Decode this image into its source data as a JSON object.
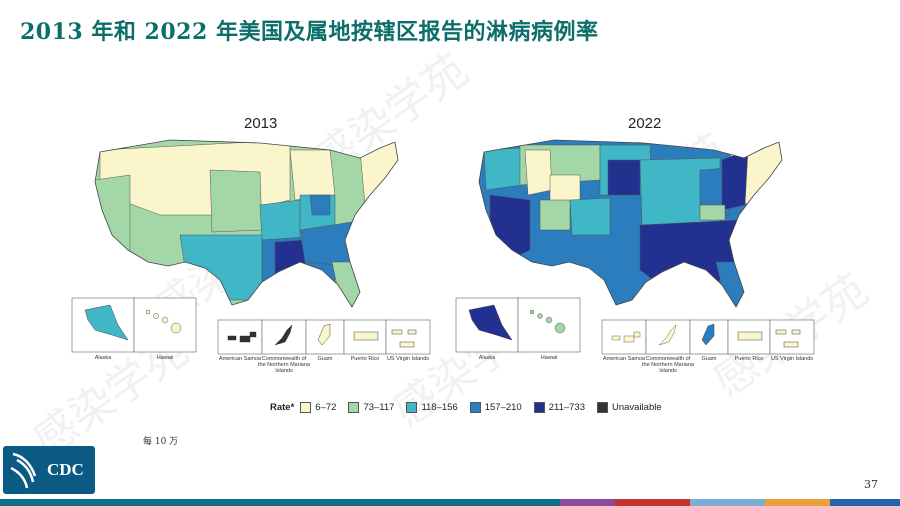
{
  "title": "2013 年和 2022 年美国及属地按辖区报告的淋病病例率",
  "maps": [
    {
      "year": "2013",
      "insets": [
        "Alaska",
        "Hawaii",
        "American Samoa",
        "Commonwealth of the Northern Mariana Islands",
        "Guam",
        "Puerto Rico",
        "US Virgin Islands"
      ]
    },
    {
      "year": "2022",
      "insets": [
        "Alaska",
        "Hawaii",
        "American Samoa",
        "Commonwealth of the Northern Mariana Islands",
        "Guam",
        "Puerto Rico",
        "US Virgin Islands"
      ]
    }
  ],
  "legend": {
    "label": "Rate*",
    "items": [
      {
        "range": "6–72",
        "color": "#fbf5cc"
      },
      {
        "range": "73–117",
        "color": "#a3d7a8"
      },
      {
        "range": "118–156",
        "color": "#3fb7c7"
      },
      {
        "range": "157–210",
        "color": "#2b7dbd"
      },
      {
        "range": "211–733",
        "color": "#22318f"
      },
      {
        "range": "Unavailable",
        "color": "#333333"
      }
    ]
  },
  "footnote": "每 10 万",
  "logo_text": "CDC",
  "page_number": "37",
  "watermark_text": "感染学苑",
  "bottom_bar_colors": [
    "#0f6f8a",
    "#0f6f8a",
    "#8b4d9b",
    "#c2352d",
    "#7aaed6",
    "#e8a23a",
    "#1f65b0"
  ]
}
